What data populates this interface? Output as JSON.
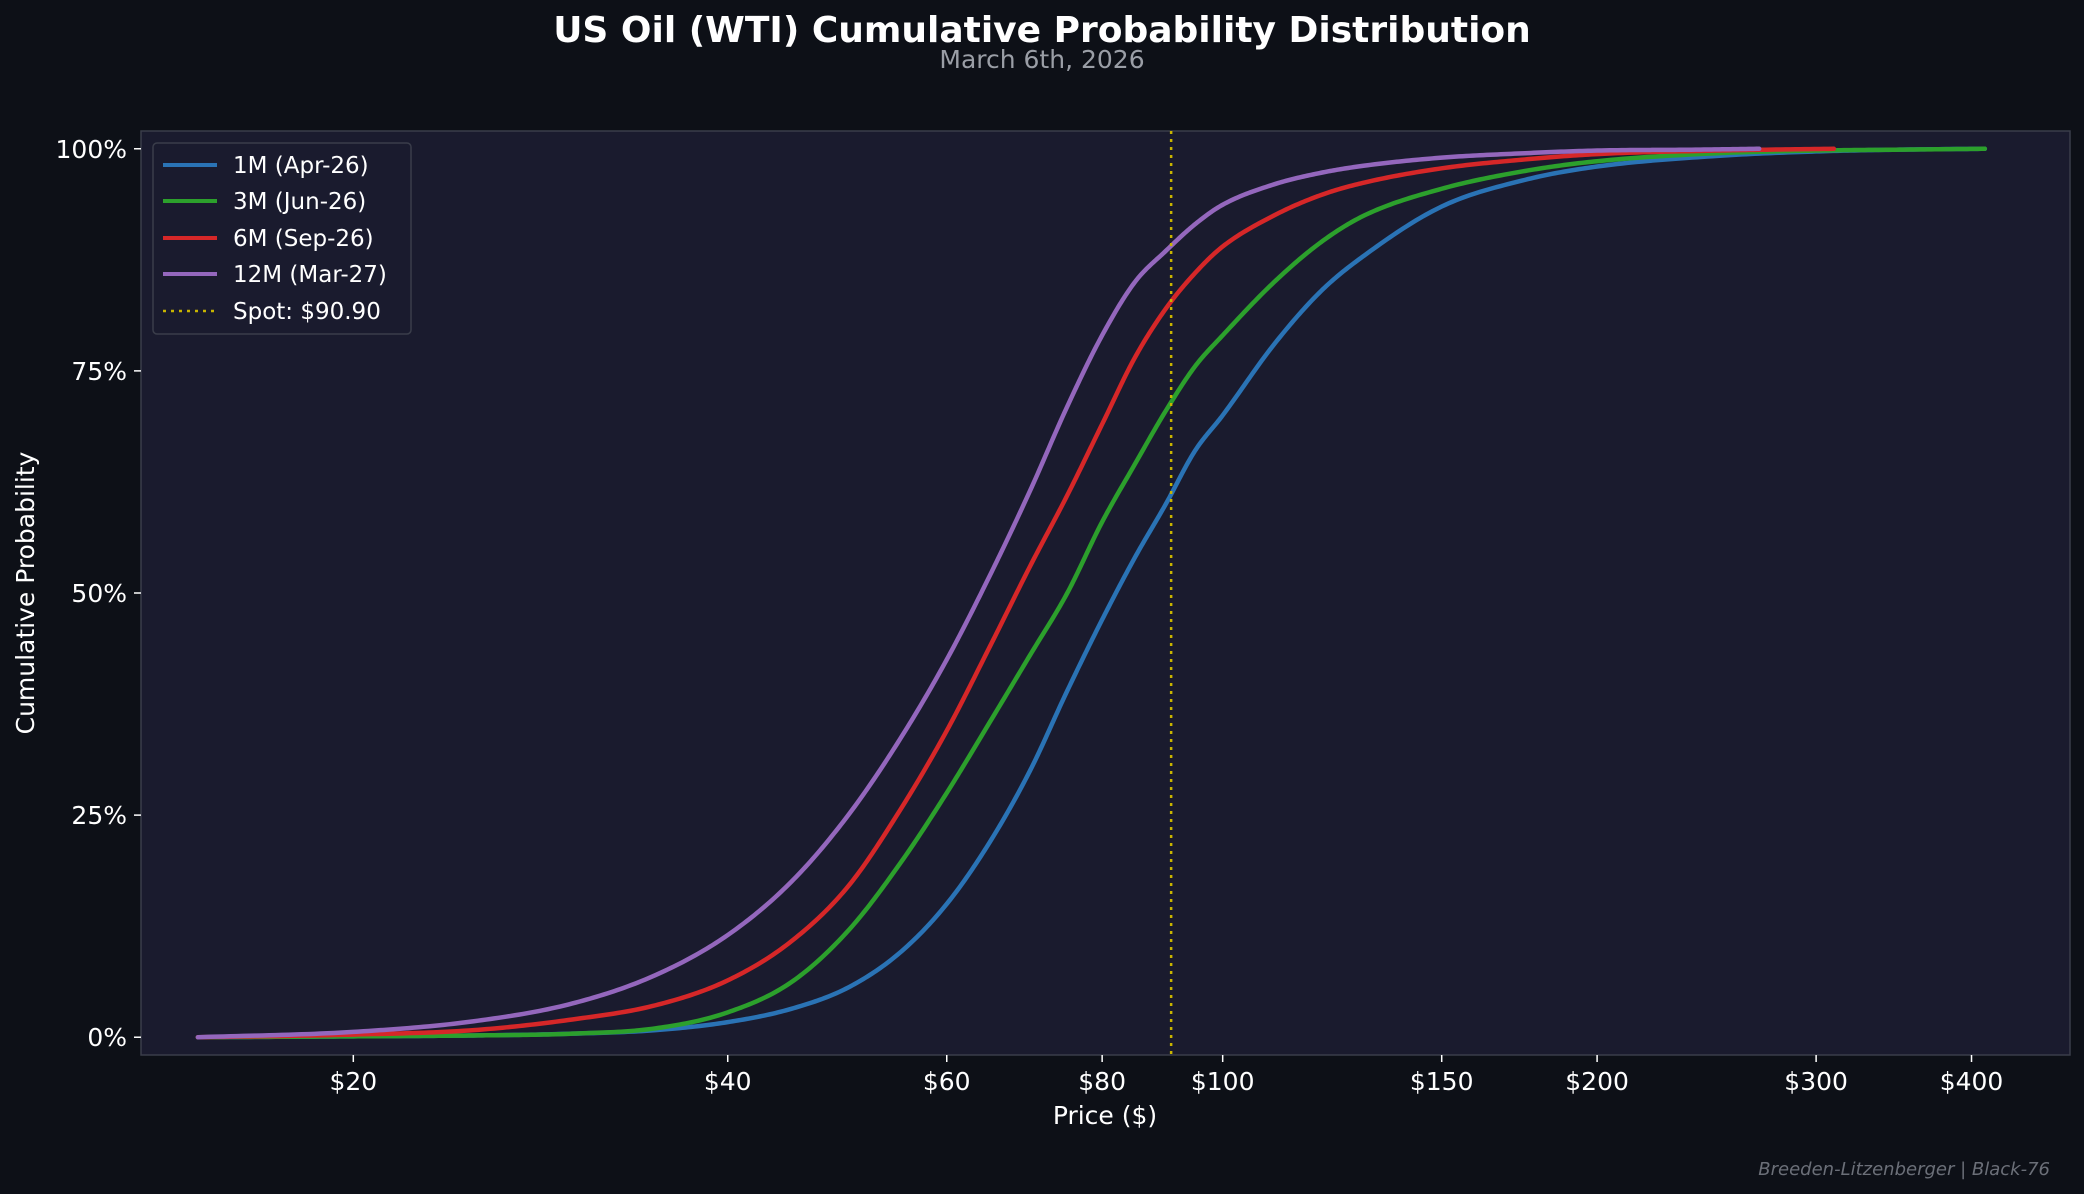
{
  "chart_data": {
    "type": "line",
    "title": "US Oil (WTI) Cumulative Probability Distribution",
    "subtitle": "March 6th, 2026",
    "xlabel": "Price ($)",
    "ylabel": "Cumulative Probability",
    "x_scale": "log",
    "xlim": [
      13.5,
      480
    ],
    "ylim": [
      -0.02,
      1.02
    ],
    "x_ticks": [
      {
        "value": 20,
        "label": "$20"
      },
      {
        "value": 40,
        "label": "$40"
      },
      {
        "value": 60,
        "label": "$60"
      },
      {
        "value": 80,
        "label": "$80"
      },
      {
        "value": 100,
        "label": "$100"
      },
      {
        "value": 150,
        "label": "$150"
      },
      {
        "value": 200,
        "label": "$200"
      },
      {
        "value": 300,
        "label": "$300"
      },
      {
        "value": 400,
        "label": "$400"
      }
    ],
    "y_ticks": [
      {
        "value": 0,
        "label": "0%"
      },
      {
        "value": 0.25,
        "label": "25%"
      },
      {
        "value": 0.5,
        "label": "50%"
      },
      {
        "value": 0.75,
        "label": "75%"
      },
      {
        "value": 1.0,
        "label": "100%"
      }
    ],
    "grid": false,
    "legend_position": "top-left",
    "spot": {
      "value": 90.9,
      "label": "Spot: $90.90",
      "color": "#c8b400"
    },
    "series": [
      {
        "name": "1M (Apr-26)",
        "color": "#2a73b5",
        "x": [
          15,
          20,
          25,
          30,
          35,
          40,
          45,
          50,
          55,
          60,
          65,
          70,
          75,
          80,
          85,
          90,
          95,
          100,
          110,
          120,
          130,
          150,
          175,
          200,
          250,
          300,
          350,
          410
        ],
        "y": [
          0.0,
          0.001,
          0.002,
          0.004,
          0.008,
          0.017,
          0.032,
          0.056,
          0.095,
          0.15,
          0.22,
          0.3,
          0.39,
          0.47,
          0.54,
          0.6,
          0.66,
          0.7,
          0.78,
          0.84,
          0.88,
          0.935,
          0.965,
          0.98,
          0.992,
          0.997,
          0.999,
          1.0
        ]
      },
      {
        "name": "3M (Jun-26)",
        "color": "#2ca02c",
        "x": [
          15,
          20,
          25,
          30,
          35,
          40,
          45,
          50,
          55,
          60,
          65,
          70,
          75,
          80,
          85,
          90,
          95,
          100,
          110,
          120,
          130,
          150,
          175,
          200,
          250,
          300,
          350,
          410
        ],
        "y": [
          0.0,
          0.001,
          0.002,
          0.004,
          0.01,
          0.028,
          0.062,
          0.12,
          0.195,
          0.275,
          0.355,
          0.43,
          0.5,
          0.58,
          0.645,
          0.705,
          0.755,
          0.79,
          0.85,
          0.895,
          0.925,
          0.955,
          0.975,
          0.986,
          0.995,
          0.998,
          0.999,
          1.0
        ]
      },
      {
        "name": "6M (Sep-26)",
        "color": "#d62728",
        "x": [
          15,
          20,
          25,
          30,
          35,
          40,
          45,
          50,
          55,
          60,
          65,
          70,
          75,
          80,
          85,
          90,
          95,
          100,
          110,
          120,
          130,
          150,
          175,
          200,
          250,
          310
        ],
        "y": [
          0.0,
          0.003,
          0.008,
          0.02,
          0.036,
          0.064,
          0.108,
          0.17,
          0.255,
          0.345,
          0.44,
          0.53,
          0.61,
          0.69,
          0.765,
          0.82,
          0.86,
          0.89,
          0.925,
          0.948,
          0.962,
          0.978,
          0.988,
          0.994,
          0.998,
          1.0
        ]
      },
      {
        "name": "12M (Mar-27)",
        "color": "#9467bd",
        "x": [
          15,
          20,
          25,
          30,
          35,
          40,
          45,
          50,
          55,
          60,
          65,
          70,
          75,
          80,
          85,
          90,
          95,
          100,
          110,
          120,
          130,
          150,
          175,
          200,
          240,
          270
        ],
        "y": [
          0.0,
          0.006,
          0.018,
          0.038,
          0.07,
          0.115,
          0.175,
          0.25,
          0.335,
          0.425,
          0.52,
          0.615,
          0.71,
          0.79,
          0.85,
          0.885,
          0.915,
          0.937,
          0.96,
          0.973,
          0.981,
          0.99,
          0.995,
          0.998,
          0.999,
          1.0
        ]
      }
    ]
  },
  "footer": "Breeden-Litzenberger | Black-76",
  "colors": {
    "figure_bg": "#0d1017",
    "axes_bg": "#1a1b2e",
    "spine": "#3a3d4a"
  }
}
